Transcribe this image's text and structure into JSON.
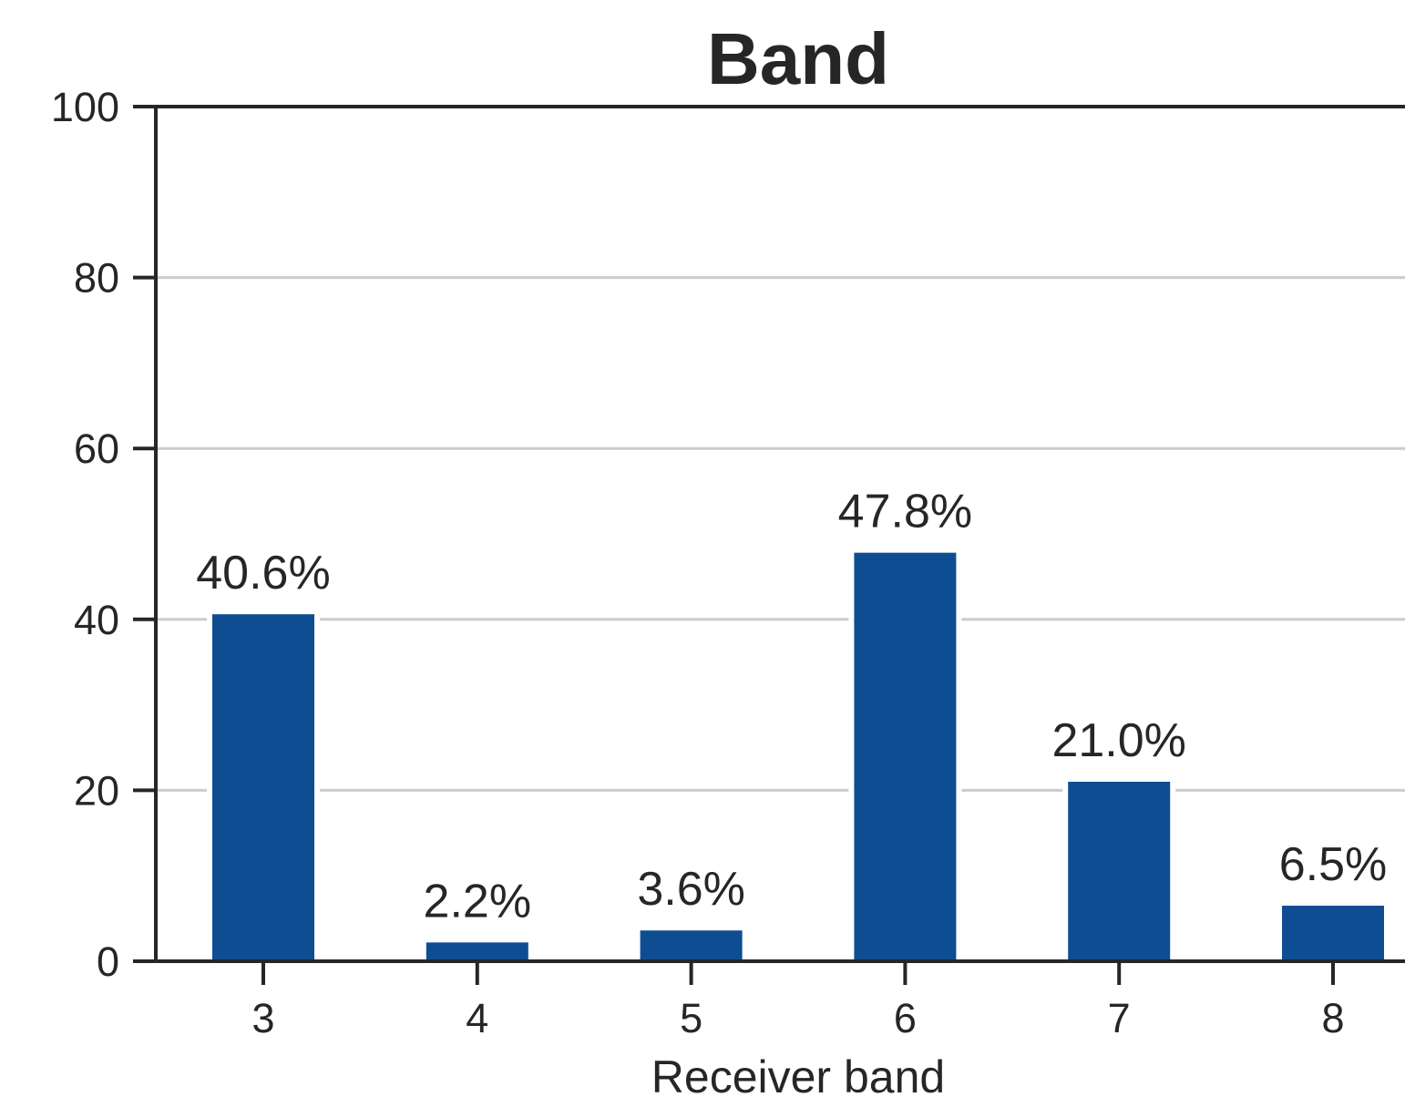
{
  "chart_data": {
    "type": "bar",
    "title": "Band",
    "xlabel": "Receiver band",
    "ylabel": "",
    "categories": [
      "3",
      "4",
      "5",
      "6",
      "7",
      "8"
    ],
    "values": [
      40.6,
      2.2,
      3.6,
      47.8,
      21.0,
      6.5
    ],
    "data_labels": [
      "40.6%",
      "2.2%",
      "3.6%",
      "47.8%",
      "21.0%",
      "6.5%"
    ],
    "ylim": [
      0,
      100
    ],
    "yticks": [
      "0",
      "20",
      "40",
      "60",
      "80",
      "100"
    ],
    "ytick_values": [
      0,
      20,
      40,
      60,
      80,
      100
    ],
    "grid": "horizontal",
    "bar_color": "#0f4d92",
    "grid_color": "#cccccc",
    "text_color": "#262626"
  }
}
